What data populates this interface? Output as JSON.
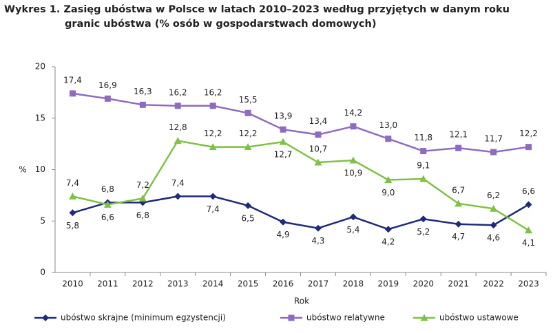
{
  "chart_data": {
    "type": "line",
    "title": "Wykres 1. Zasięg ubóstwa w Polsce w latach 2010–2023 według przyjętych w danym roku granic ubóstwa (% osób w gospodarstwach domowych)",
    "x_label": "Rok",
    "y_label": "%",
    "categories": [
      "2010",
      "2011",
      "2012",
      "2013",
      "2014",
      "2015",
      "2016",
      "2017",
      "2018",
      "2019",
      "2020",
      "2021",
      "2022",
      "2023"
    ],
    "ylim": [
      0,
      20
    ],
    "yticks": [
      0,
      5,
      10,
      15,
      20
    ],
    "grid": false,
    "series": [
      {
        "name": "ubóstwo skrajne (minimum egzystencji)",
        "color": "#1f2a7a",
        "marker": "diamond",
        "values": [
          5.8,
          6.8,
          6.8,
          7.4,
          7.4,
          6.5,
          4.9,
          4.3,
          5.4,
          4.2,
          5.2,
          4.7,
          4.6,
          6.6
        ],
        "value_labels": [
          "5,8",
          "6,8",
          "6,8",
          "7,4",
          "7,4",
          "6,5",
          "4,9",
          "4,3",
          "5,4",
          "4,2",
          "5,2",
          "4,7",
          "4,6",
          "6,6"
        ]
      },
      {
        "name": "ubóstwo relatywne",
        "color": "#8e6bbf",
        "marker": "square",
        "values": [
          17.4,
          16.9,
          16.3,
          16.2,
          16.2,
          15.5,
          13.9,
          13.4,
          14.2,
          13.0,
          11.8,
          12.1,
          11.7,
          12.2
        ],
        "value_labels": [
          "17,4",
          "16,9",
          "16,3",
          "16,2",
          "16,2",
          "15,5",
          "13,9",
          "13,4",
          "14,2",
          "13,0",
          "11,8",
          "12,1",
          "11,7",
          "12,2"
        ]
      },
      {
        "name": "ubóstwo ustawowe",
        "color": "#7dc242",
        "marker": "triangle",
        "values": [
          7.4,
          6.6,
          7.2,
          12.8,
          12.2,
          12.2,
          12.7,
          10.7,
          10.9,
          9.0,
          9.1,
          6.7,
          6.2,
          4.1
        ],
        "value_labels": [
          "7,4",
          "6,6",
          "7,2",
          "12,8",
          "12,2",
          "12,2",
          "12,7",
          "10,7",
          "10,9",
          "9,0",
          "9,1",
          "6,7",
          "6,2",
          "4,1"
        ]
      }
    ]
  }
}
